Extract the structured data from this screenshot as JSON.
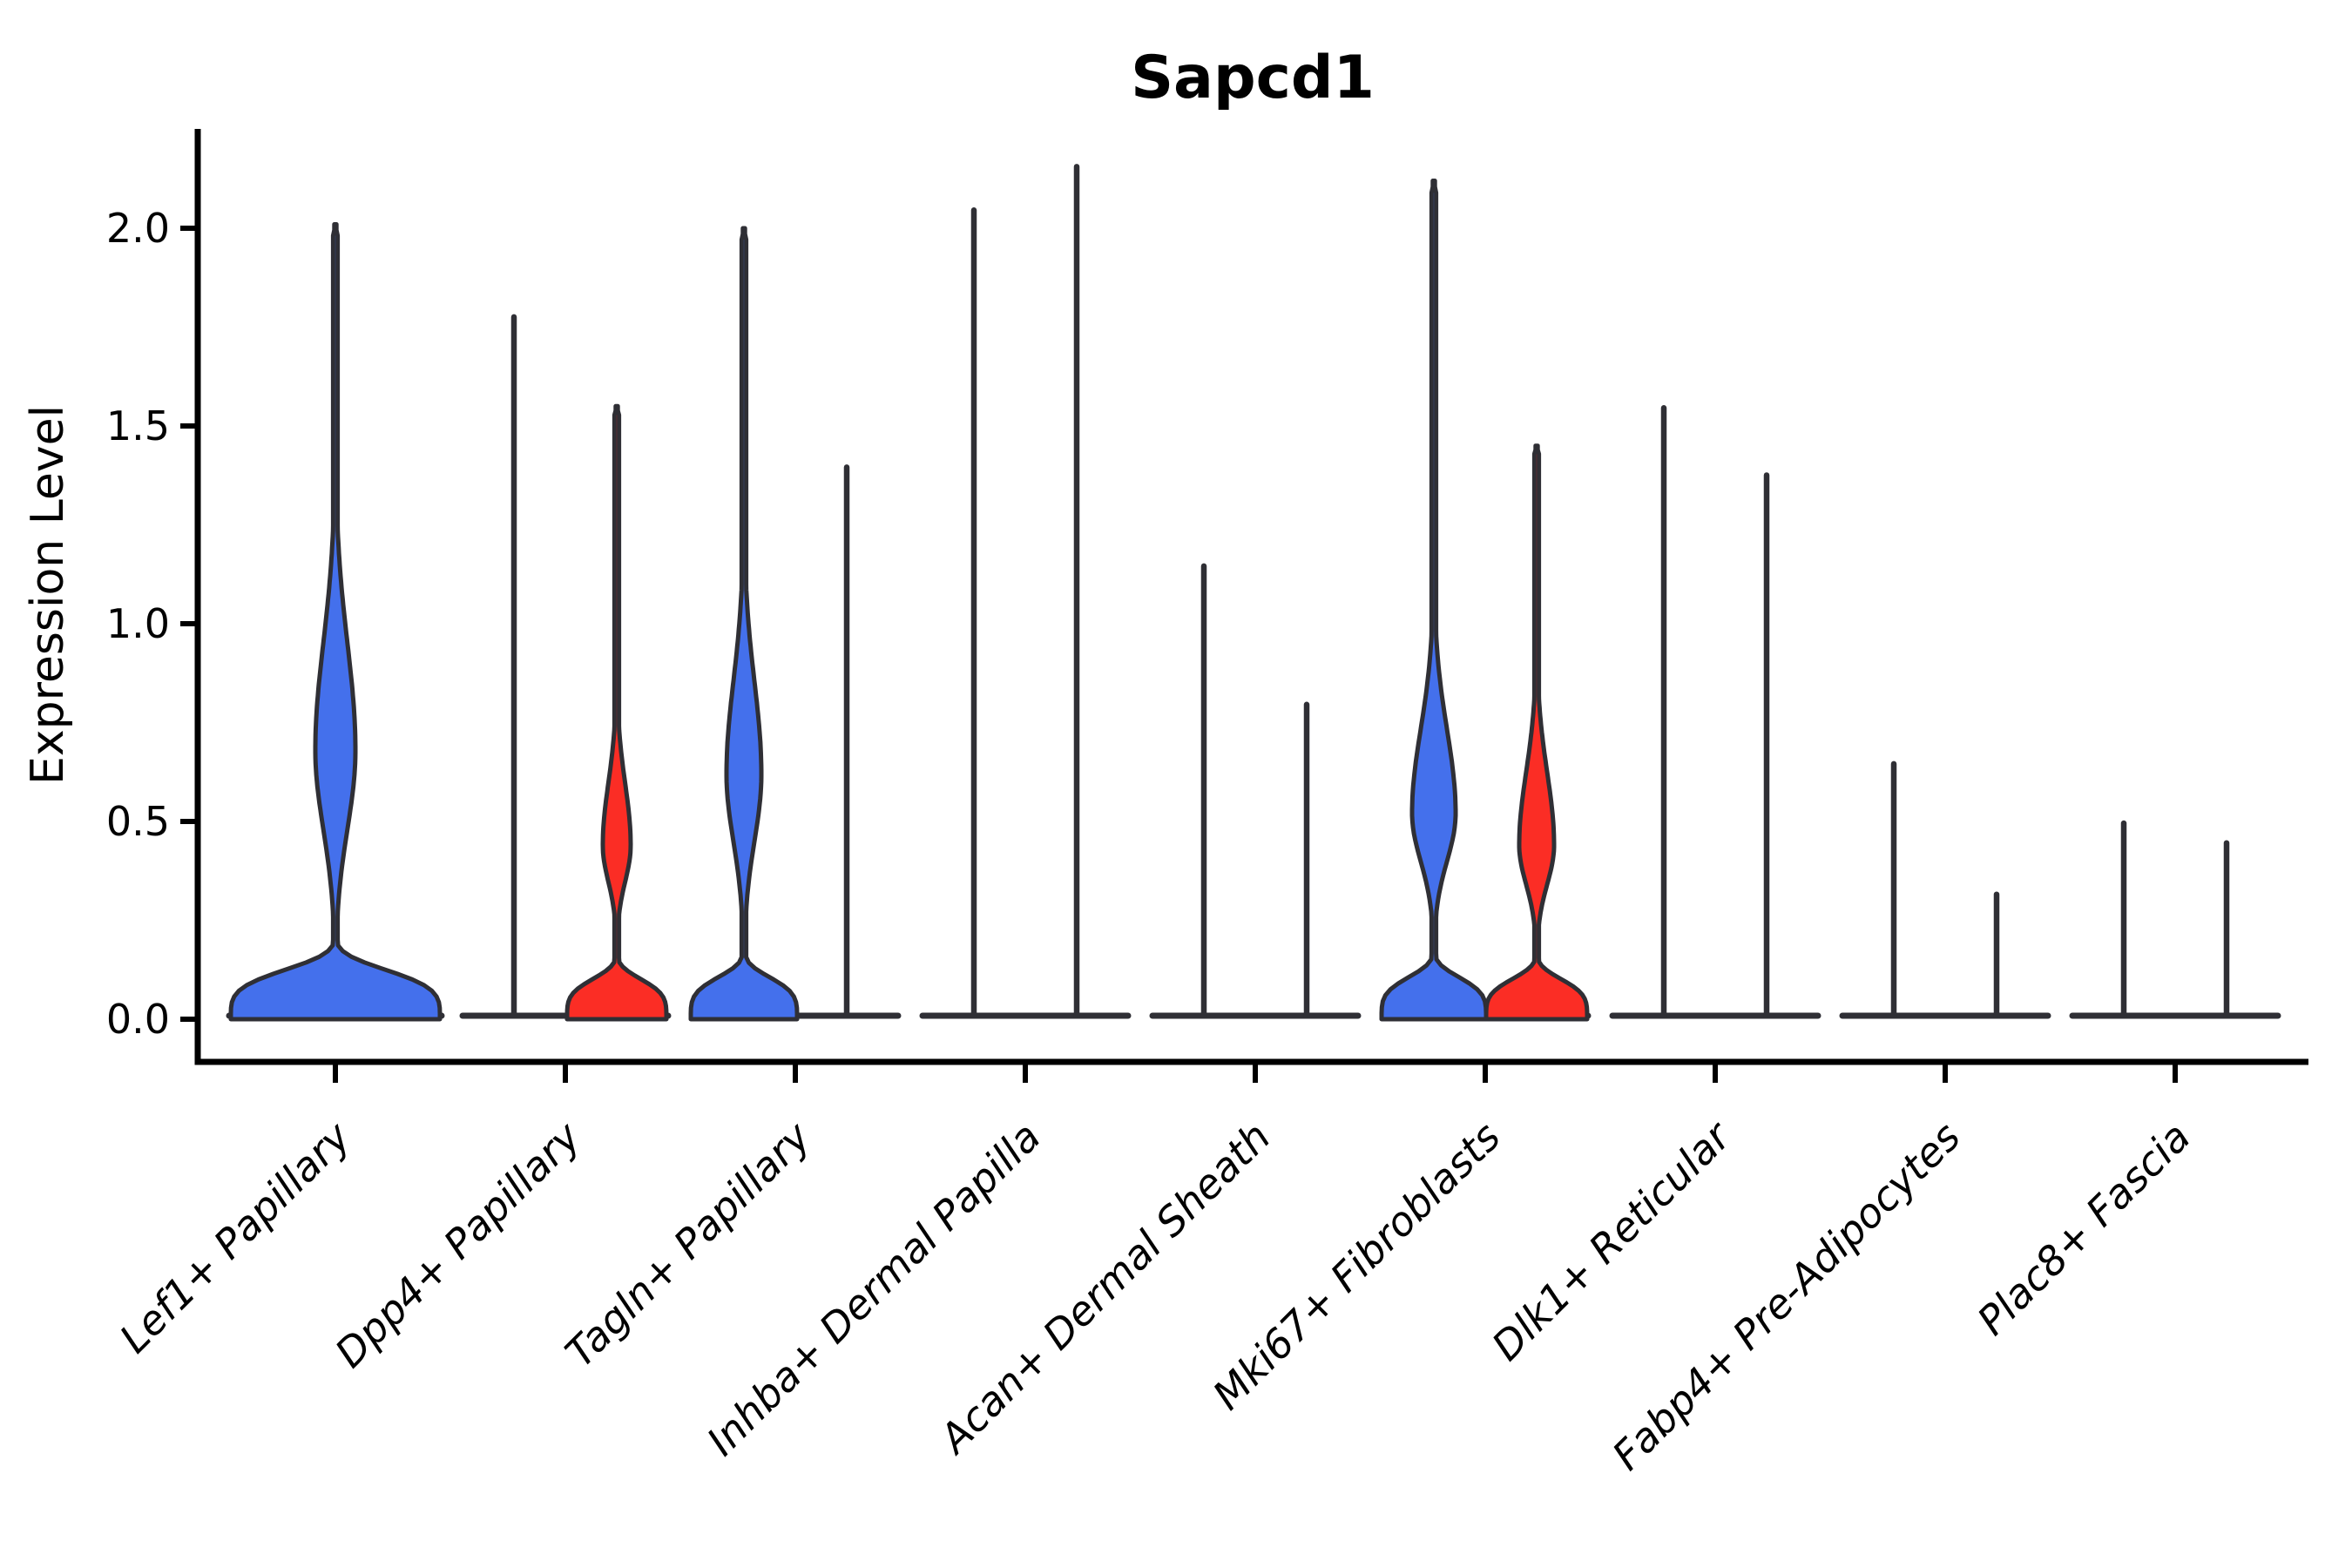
{
  "title": "Sapcd1",
  "axes": {
    "y_label": "Expression Level",
    "y_tick_labels": [
      "0.0",
      "0.5",
      "1.0",
      "1.5",
      "2.0"
    ],
    "x_label": ""
  },
  "colors": {
    "blue": "#4470EC",
    "red": "#FB2D25",
    "outline": "#2F2F35",
    "background": "#FFFFFF",
    "text": "#000000"
  },
  "chart_data": {
    "type": "violin",
    "title": "Sapcd1",
    "xlabel": "",
    "ylabel": "Expression Level",
    "ylim": [
      0,
      2.25
    ],
    "y_ticks": [
      0.0,
      0.5,
      1.0,
      1.5,
      2.0
    ],
    "y_tick_labels": [
      "0.0",
      "0.5",
      "1.0",
      "1.5",
      "2.0"
    ],
    "grid": false,
    "legend": "none",
    "categories": [
      "Lef1+ Papillary",
      "Dpp4+ Papillary",
      "Tagln+ Papillary",
      "Inhba+ Dermal Papilla",
      "Acan+ Dermal Sheath",
      "Mki67+ Fibroblasts",
      "Dlk1+ Reticular",
      "Fabp4+ Pre-Adipocytes",
      "Plac8+ Fascia"
    ],
    "groups": [
      "blue-group",
      "red-group"
    ],
    "violins": [
      {
        "category": "Lef1+ Papillary",
        "category_index": 0,
        "side": "center",
        "fill": "blue",
        "shape": "density",
        "max": 2.01,
        "bulge": {
          "center": 0.68,
          "peak_hw": 23,
          "sigma_lo": 0.28,
          "sigma_hi": 0.38
        },
        "base_hw": 120,
        "base_sigma": 0.135
      },
      {
        "category": "Dpp4+ Papillary",
        "category_index": 1,
        "side": "left",
        "fill": "none",
        "shape": "spike",
        "max": 1.78
      },
      {
        "category": "Dpp4+ Papillary",
        "category_index": 1,
        "side": "right",
        "fill": "red",
        "shape": "density",
        "max": 1.55,
        "bulge": {
          "center": 0.44,
          "peak_hw": 16,
          "sigma_lo": 0.13,
          "sigma_hi": 0.22
        },
        "base_hw": 57,
        "base_sigma": 0.11
      },
      {
        "category": "Tagln+ Papillary",
        "category_index": 2,
        "side": "left",
        "fill": "blue",
        "shape": "density",
        "max": 2.0,
        "bulge": {
          "center": 0.62,
          "peak_hw": 20,
          "sigma_lo": 0.24,
          "sigma_hi": 0.33
        },
        "base_hw": 61,
        "base_sigma": 0.115
      },
      {
        "category": "Tagln+ Papillary",
        "category_index": 2,
        "side": "right",
        "fill": "none",
        "shape": "spike",
        "max": 1.4
      },
      {
        "category": "Inhba+ Dermal Papilla",
        "category_index": 3,
        "side": "left",
        "fill": "none",
        "shape": "spike",
        "max": 2.05
      },
      {
        "category": "Inhba+ Dermal Papilla",
        "category_index": 3,
        "side": "right",
        "fill": "none",
        "shape": "spike",
        "max": 2.16
      },
      {
        "category": "Acan+ Dermal Sheath",
        "category_index": 4,
        "side": "left",
        "fill": "none",
        "shape": "spike",
        "max": 1.15
      },
      {
        "category": "Acan+ Dermal Sheath",
        "category_index": 4,
        "side": "right",
        "fill": "none",
        "shape": "spike",
        "max": 0.8
      },
      {
        "category": "Mki67+ Fibroblasts",
        "category_index": 5,
        "side": "left",
        "fill": "blue",
        "shape": "density",
        "max": 2.12,
        "bulge": {
          "center": 0.52,
          "peak_hw": 25,
          "sigma_lo": 0.17,
          "sigma_hi": 0.3
        },
        "base_hw": 60,
        "base_sigma": 0.115
      },
      {
        "category": "Mki67+ Fibroblasts",
        "category_index": 5,
        "side": "right",
        "fill": "red",
        "shape": "density",
        "max": 1.45,
        "bulge": {
          "center": 0.44,
          "peak_hw": 20,
          "sigma_lo": 0.14,
          "sigma_hi": 0.26
        },
        "base_hw": 58,
        "base_sigma": 0.11
      },
      {
        "category": "Dlk1+ Reticular",
        "category_index": 6,
        "side": "left",
        "fill": "none",
        "shape": "spike",
        "max": 1.55
      },
      {
        "category": "Dlk1+ Reticular",
        "category_index": 6,
        "side": "right",
        "fill": "none",
        "shape": "spike",
        "max": 1.38
      },
      {
        "category": "Fabp4+ Pre-Adipocytes",
        "category_index": 7,
        "side": "left",
        "fill": "none",
        "shape": "spike",
        "max": 0.65
      },
      {
        "category": "Fabp4+ Pre-Adipocytes",
        "category_index": 7,
        "side": "right",
        "fill": "none",
        "shape": "spike",
        "max": 0.32
      },
      {
        "category": "Plac8+ Fascia",
        "category_index": 8,
        "side": "left",
        "fill": "none",
        "shape": "spike",
        "max": 0.5
      },
      {
        "category": "Plac8+ Fascia",
        "category_index": 8,
        "side": "right",
        "fill": "none",
        "shape": "spike",
        "max": 0.45
      }
    ]
  }
}
